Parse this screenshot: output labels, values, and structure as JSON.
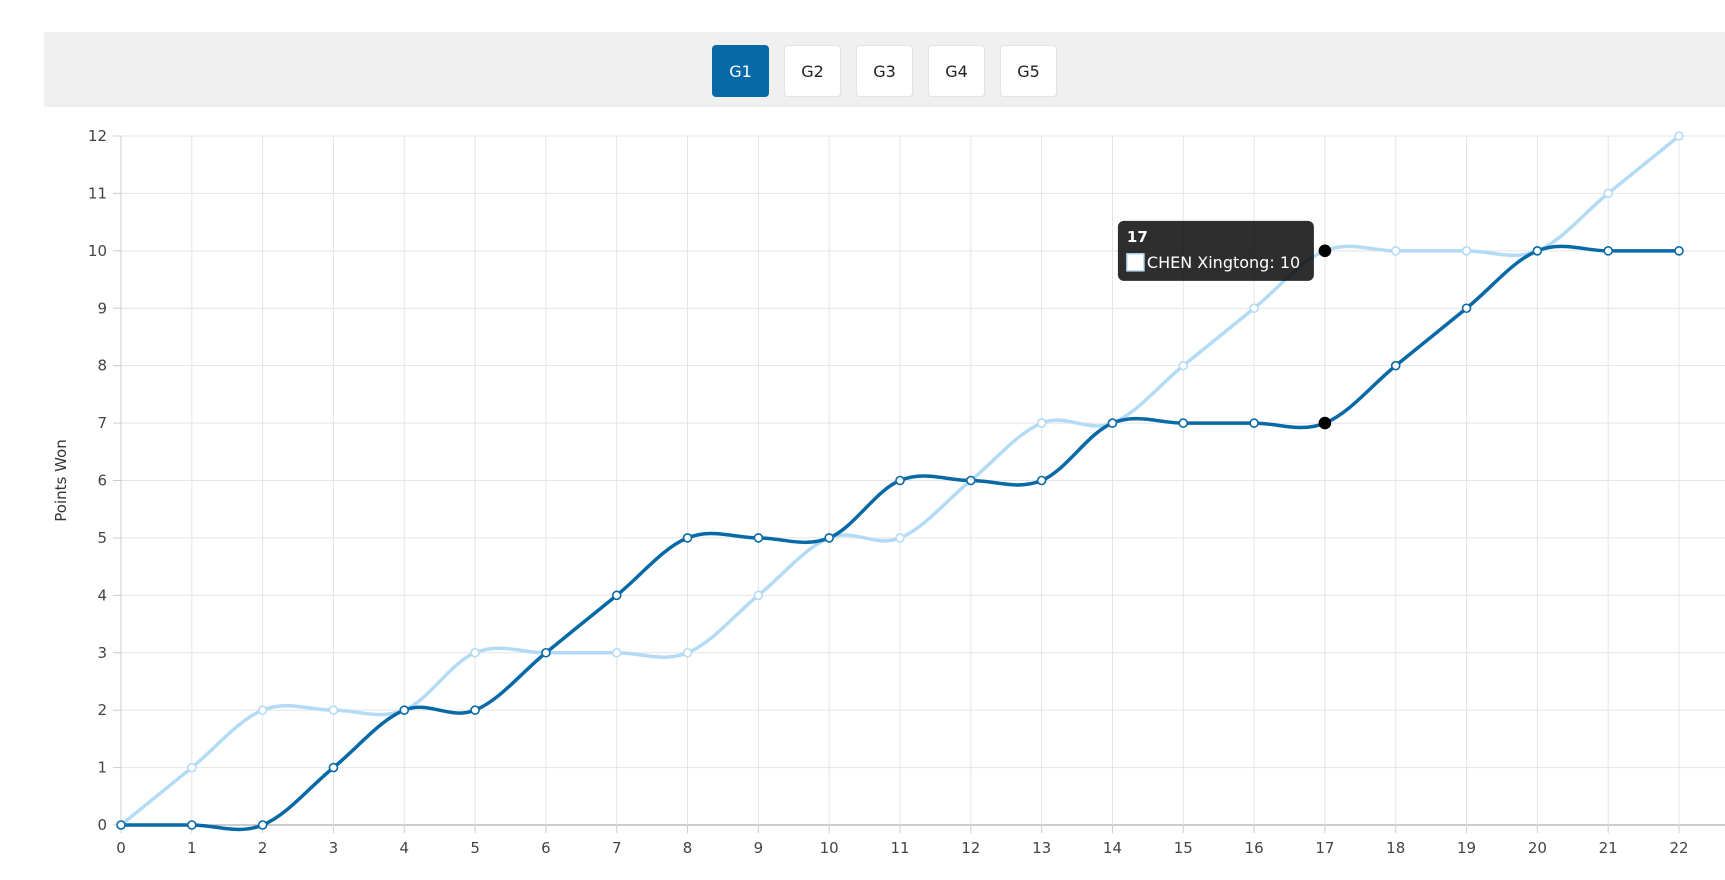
{
  "tabs": [
    {
      "label": "G1",
      "active": true
    },
    {
      "label": "G2",
      "active": false
    },
    {
      "label": "G3",
      "active": false
    },
    {
      "label": "G4",
      "active": false
    },
    {
      "label": "G5",
      "active": false
    }
  ],
  "chart_data": {
    "type": "line",
    "title": "",
    "xlabel": "",
    "ylabel": "Points Won",
    "x": [
      0,
      1,
      2,
      3,
      4,
      5,
      6,
      7,
      8,
      9,
      10,
      11,
      12,
      13,
      14,
      15,
      16,
      17,
      18,
      19,
      20,
      21,
      22
    ],
    "xlim": [
      0,
      22
    ],
    "ylim": [
      0,
      12
    ],
    "grid": true,
    "series": [
      {
        "color": "#b3dbf5",
        "values": [
          0,
          1,
          2,
          2,
          2,
          3,
          3,
          3,
          3,
          4,
          5,
          5,
          6,
          7,
          7,
          8,
          9,
          10,
          10,
          10,
          10,
          11,
          12
        ]
      },
      {
        "color": "#0869a7",
        "values": [
          0,
          0,
          0,
          1,
          2,
          2,
          3,
          4,
          5,
          5,
          5,
          6,
          6,
          6,
          7,
          7,
          7,
          7,
          8,
          9,
          10,
          10,
          10
        ]
      }
    ],
    "tooltip": {
      "title": "17",
      "label": "CHEN Xingtong: 10"
    }
  }
}
